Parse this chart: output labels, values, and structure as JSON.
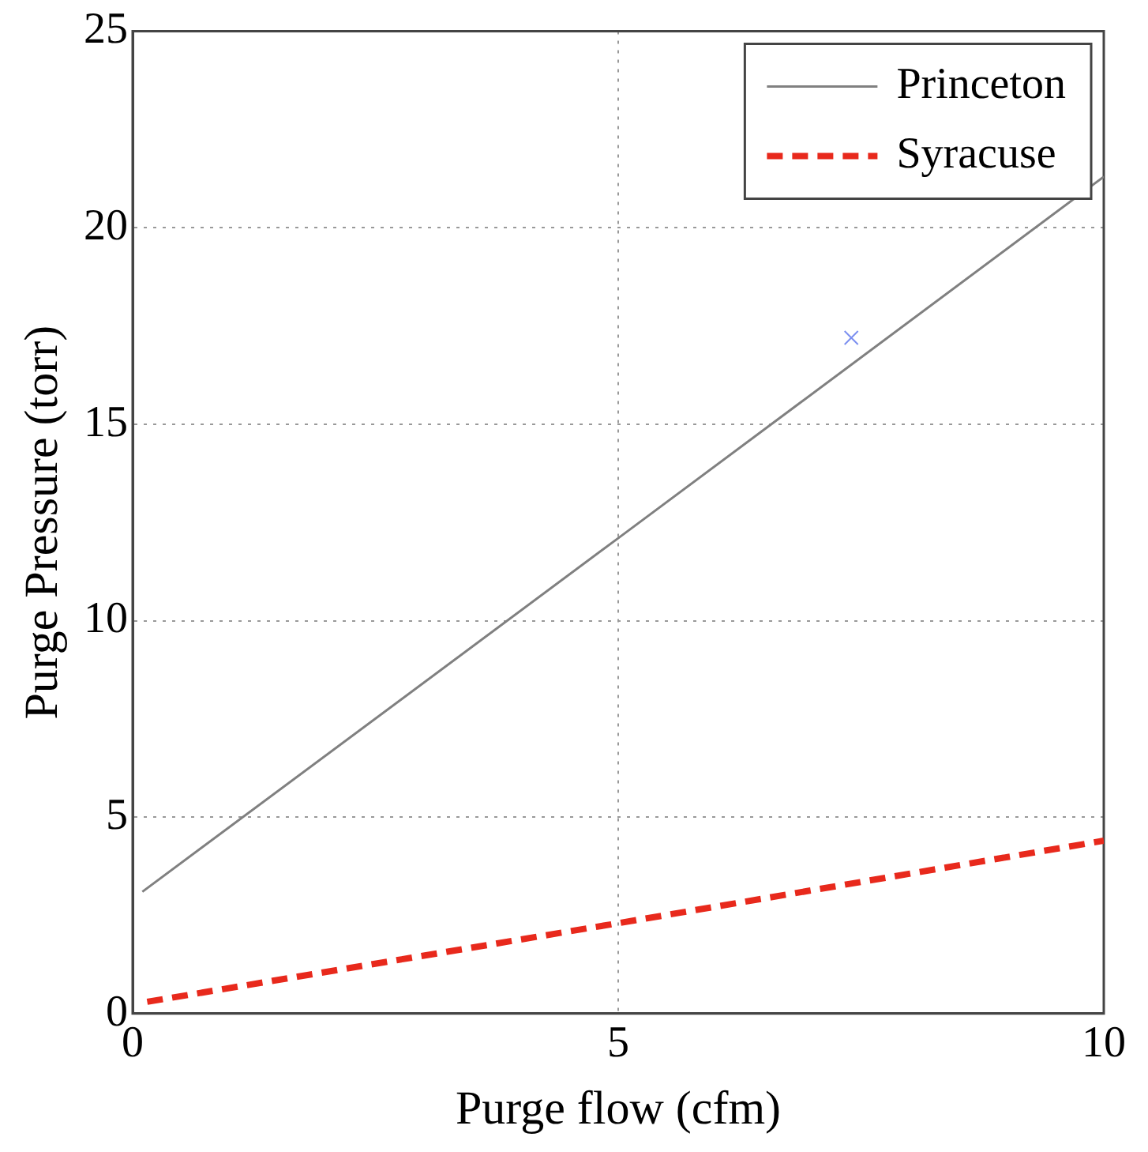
{
  "chart_data": {
    "type": "line",
    "xlabel": "Purge flow (cfm)",
    "ylabel": "Purge Pressure (torr)",
    "xlim": [
      0,
      10
    ],
    "xticks": [
      0,
      5,
      10
    ],
    "ylim": [
      0,
      25
    ],
    "yticks": [
      0,
      5,
      10,
      15,
      20,
      25
    ],
    "grid": true,
    "legend": "top right",
    "series": [
      {
        "name": "Princeton",
        "color": "#808080",
        "x": [
          0.1,
          5,
          10
        ],
        "values": [
          3.1,
          12.1,
          21.3
        ],
        "line_style": "solid",
        "marker": "none"
      },
      {
        "name": "Syracuse",
        "color": "#e8291c",
        "x": [
          0.15,
          5,
          10
        ],
        "values": [
          0.3,
          2.3,
          4.4
        ],
        "line_style": "dashed",
        "marker": "none"
      },
      {
        "type": "scatter",
        "color": "#7b8ff0",
        "x": [
          7.4
        ],
        "values": [
          17.2
        ],
        "marker": "cross"
      }
    ]
  }
}
